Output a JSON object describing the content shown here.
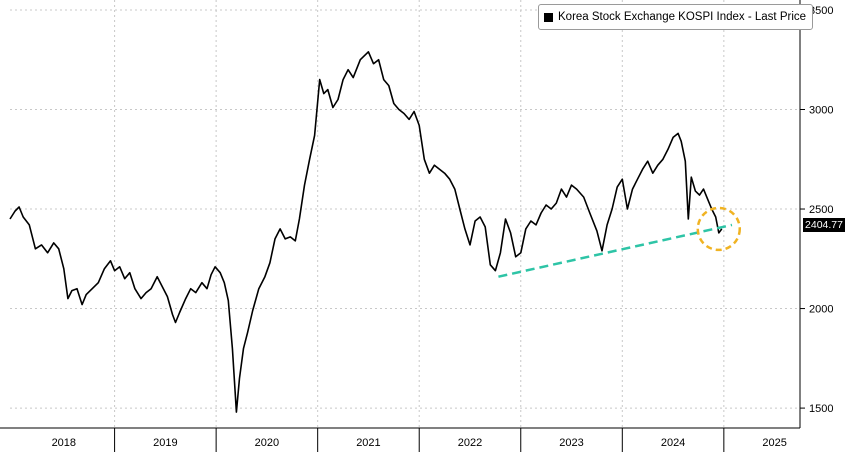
{
  "legend": {
    "label": "Korea Stock Exchange KOSPI Index - Last Price"
  },
  "last_price_label": "2404.77",
  "colors": {
    "series": "#000000",
    "trendline": "#2ec4a6",
    "highlight": "#f0b323",
    "grid": "#c8c8c8"
  },
  "chart_data": {
    "type": "line",
    "title": "",
    "xlabel": "",
    "ylabel": "",
    "ylim": [
      1400,
      3550
    ],
    "xlim": [
      2017.97,
      2025.75
    ],
    "y_ticks": [
      1500,
      2000,
      2500,
      3000,
      3500
    ],
    "x_tick_labels": [
      {
        "label": "2018",
        "at": 2018.5
      },
      {
        "label": "2019",
        "at": 2019.5
      },
      {
        "label": "2020",
        "at": 2020.5
      },
      {
        "label": "2021",
        "at": 2021.5
      },
      {
        "label": "2022",
        "at": 2022.5
      },
      {
        "label": "2023",
        "at": 2023.5
      },
      {
        "label": "2024",
        "at": 2024.5
      },
      {
        "label": "2025",
        "at": 2025.5
      }
    ],
    "x_boundaries": [
      2019.0,
      2020.0,
      2021.0,
      2022.0,
      2023.0,
      2024.0,
      2025.0
    ],
    "grid": true,
    "legend_position": "top-right",
    "series": [
      {
        "name": "Korea Stock Exchange KOSPI Index - Last Price",
        "points": [
          [
            2017.97,
            2450
          ],
          [
            2018.02,
            2490
          ],
          [
            2018.06,
            2510
          ],
          [
            2018.1,
            2460
          ],
          [
            2018.16,
            2420
          ],
          [
            2018.22,
            2300
          ],
          [
            2018.28,
            2320
          ],
          [
            2018.34,
            2280
          ],
          [
            2018.4,
            2330
          ],
          [
            2018.45,
            2300
          ],
          [
            2018.5,
            2200
          ],
          [
            2018.54,
            2050
          ],
          [
            2018.58,
            2090
          ],
          [
            2018.63,
            2100
          ],
          [
            2018.68,
            2020
          ],
          [
            2018.72,
            2070
          ],
          [
            2018.78,
            2100
          ],
          [
            2018.84,
            2130
          ],
          [
            2018.9,
            2200
          ],
          [
            2018.96,
            2240
          ],
          [
            2019.0,
            2190
          ],
          [
            2019.05,
            2210
          ],
          [
            2019.1,
            2150
          ],
          [
            2019.15,
            2180
          ],
          [
            2019.2,
            2100
          ],
          [
            2019.26,
            2050
          ],
          [
            2019.31,
            2080
          ],
          [
            2019.36,
            2100
          ],
          [
            2019.42,
            2160
          ],
          [
            2019.46,
            2120
          ],
          [
            2019.52,
            2060
          ],
          [
            2019.57,
            1970
          ],
          [
            2019.6,
            1930
          ],
          [
            2019.64,
            1980
          ],
          [
            2019.7,
            2050
          ],
          [
            2019.75,
            2100
          ],
          [
            2019.8,
            2080
          ],
          [
            2019.86,
            2130
          ],
          [
            2019.91,
            2100
          ],
          [
            2019.95,
            2170
          ],
          [
            2019.99,
            2210
          ],
          [
            2020.04,
            2180
          ],
          [
            2020.08,
            2130
          ],
          [
            2020.12,
            2040
          ],
          [
            2020.16,
            1800
          ],
          [
            2020.2,
            1480
          ],
          [
            2020.23,
            1650
          ],
          [
            2020.27,
            1800
          ],
          [
            2020.31,
            1880
          ],
          [
            2020.36,
            1990
          ],
          [
            2020.42,
            2100
          ],
          [
            2020.48,
            2160
          ],
          [
            2020.53,
            2230
          ],
          [
            2020.58,
            2350
          ],
          [
            2020.63,
            2400
          ],
          [
            2020.68,
            2350
          ],
          [
            2020.73,
            2360
          ],
          [
            2020.78,
            2340
          ],
          [
            2020.82,
            2450
          ],
          [
            2020.87,
            2620
          ],
          [
            2020.92,
            2750
          ],
          [
            2020.97,
            2870
          ],
          [
            2021.02,
            3150
          ],
          [
            2021.06,
            3080
          ],
          [
            2021.1,
            3100
          ],
          [
            2021.15,
            3010
          ],
          [
            2021.2,
            3050
          ],
          [
            2021.25,
            3150
          ],
          [
            2021.3,
            3200
          ],
          [
            2021.35,
            3160
          ],
          [
            2021.42,
            3250
          ],
          [
            2021.5,
            3290
          ],
          [
            2021.55,
            3230
          ],
          [
            2021.6,
            3250
          ],
          [
            2021.65,
            3150
          ],
          [
            2021.7,
            3120
          ],
          [
            2021.75,
            3030
          ],
          [
            2021.8,
            3000
          ],
          [
            2021.85,
            2980
          ],
          [
            2021.9,
            2950
          ],
          [
            2021.95,
            2990
          ],
          [
            2022.0,
            2920
          ],
          [
            2022.05,
            2750
          ],
          [
            2022.1,
            2680
          ],
          [
            2022.15,
            2720
          ],
          [
            2022.2,
            2700
          ],
          [
            2022.25,
            2680
          ],
          [
            2022.3,
            2650
          ],
          [
            2022.35,
            2600
          ],
          [
            2022.4,
            2500
          ],
          [
            2022.45,
            2400
          ],
          [
            2022.5,
            2320
          ],
          [
            2022.55,
            2440
          ],
          [
            2022.6,
            2460
          ],
          [
            2022.65,
            2410
          ],
          [
            2022.7,
            2220
          ],
          [
            2022.75,
            2190
          ],
          [
            2022.8,
            2280
          ],
          [
            2022.85,
            2450
          ],
          [
            2022.9,
            2380
          ],
          [
            2022.95,
            2260
          ],
          [
            2023.0,
            2280
          ],
          [
            2023.05,
            2400
          ],
          [
            2023.1,
            2440
          ],
          [
            2023.15,
            2420
          ],
          [
            2023.2,
            2480
          ],
          [
            2023.25,
            2520
          ],
          [
            2023.3,
            2500
          ],
          [
            2023.35,
            2530
          ],
          [
            2023.4,
            2600
          ],
          [
            2023.45,
            2560
          ],
          [
            2023.5,
            2620
          ],
          [
            2023.55,
            2600
          ],
          [
            2023.62,
            2560
          ],
          [
            2023.68,
            2480
          ],
          [
            2023.75,
            2390
          ],
          [
            2023.8,
            2290
          ],
          [
            2023.85,
            2420
          ],
          [
            2023.9,
            2500
          ],
          [
            2023.95,
            2610
          ],
          [
            2024.0,
            2650
          ],
          [
            2024.05,
            2500
          ],
          [
            2024.1,
            2600
          ],
          [
            2024.15,
            2650
          ],
          [
            2024.2,
            2700
          ],
          [
            2024.25,
            2740
          ],
          [
            2024.3,
            2680
          ],
          [
            2024.35,
            2720
          ],
          [
            2024.4,
            2750
          ],
          [
            2024.45,
            2800
          ],
          [
            2024.5,
            2860
          ],
          [
            2024.55,
            2880
          ],
          [
            2024.58,
            2840
          ],
          [
            2024.62,
            2740
          ],
          [
            2024.65,
            2450
          ],
          [
            2024.68,
            2660
          ],
          [
            2024.72,
            2590
          ],
          [
            2024.76,
            2570
          ],
          [
            2024.8,
            2600
          ],
          [
            2024.84,
            2550
          ],
          [
            2024.88,
            2500
          ],
          [
            2024.92,
            2460
          ],
          [
            2024.95,
            2380
          ],
          [
            2024.98,
            2400
          ]
        ]
      }
    ],
    "trendline": {
      "from": [
        2022.78,
        2160
      ],
      "to": [
        2025.08,
        2420
      ]
    },
    "highlight_circle": {
      "center": [
        2024.95,
        2400
      ]
    }
  }
}
